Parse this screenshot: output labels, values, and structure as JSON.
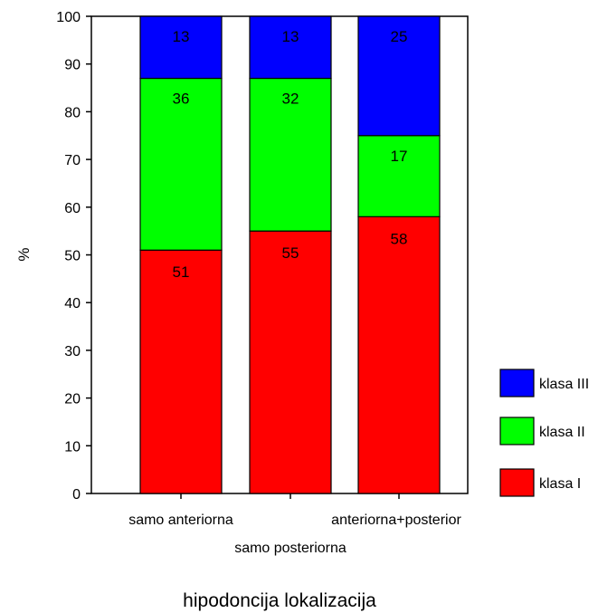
{
  "chart_data": {
    "type": "bar",
    "stacked": true,
    "categories": [
      "samo anteriorna",
      "samo posteriorna",
      "anteriorna+posterior"
    ],
    "series": [
      {
        "name": "klasa I",
        "color": "#ff0000",
        "values": [
          51,
          55,
          58
        ]
      },
      {
        "name": "klasa II",
        "color": "#00ff00",
        "values": [
          36,
          32,
          17
        ]
      },
      {
        "name": "klasa III",
        "color": "#0000ff",
        "values": [
          13,
          13,
          25
        ]
      }
    ],
    "data_labels": [
      [
        "51",
        "55",
        "58"
      ],
      [
        "36",
        "32",
        "17"
      ],
      [
        "13",
        "13",
        "25"
      ]
    ],
    "ylabel": "%",
    "xlabel": "hipodoncija lokalizacija",
    "ylim": [
      0,
      100
    ],
    "yticks": [
      0,
      10,
      20,
      30,
      40,
      50,
      60,
      70,
      80,
      90,
      100
    ],
    "grid": false,
    "legend_position": "right",
    "legend_order": [
      "klasa III",
      "klasa II",
      "klasa I"
    ]
  }
}
